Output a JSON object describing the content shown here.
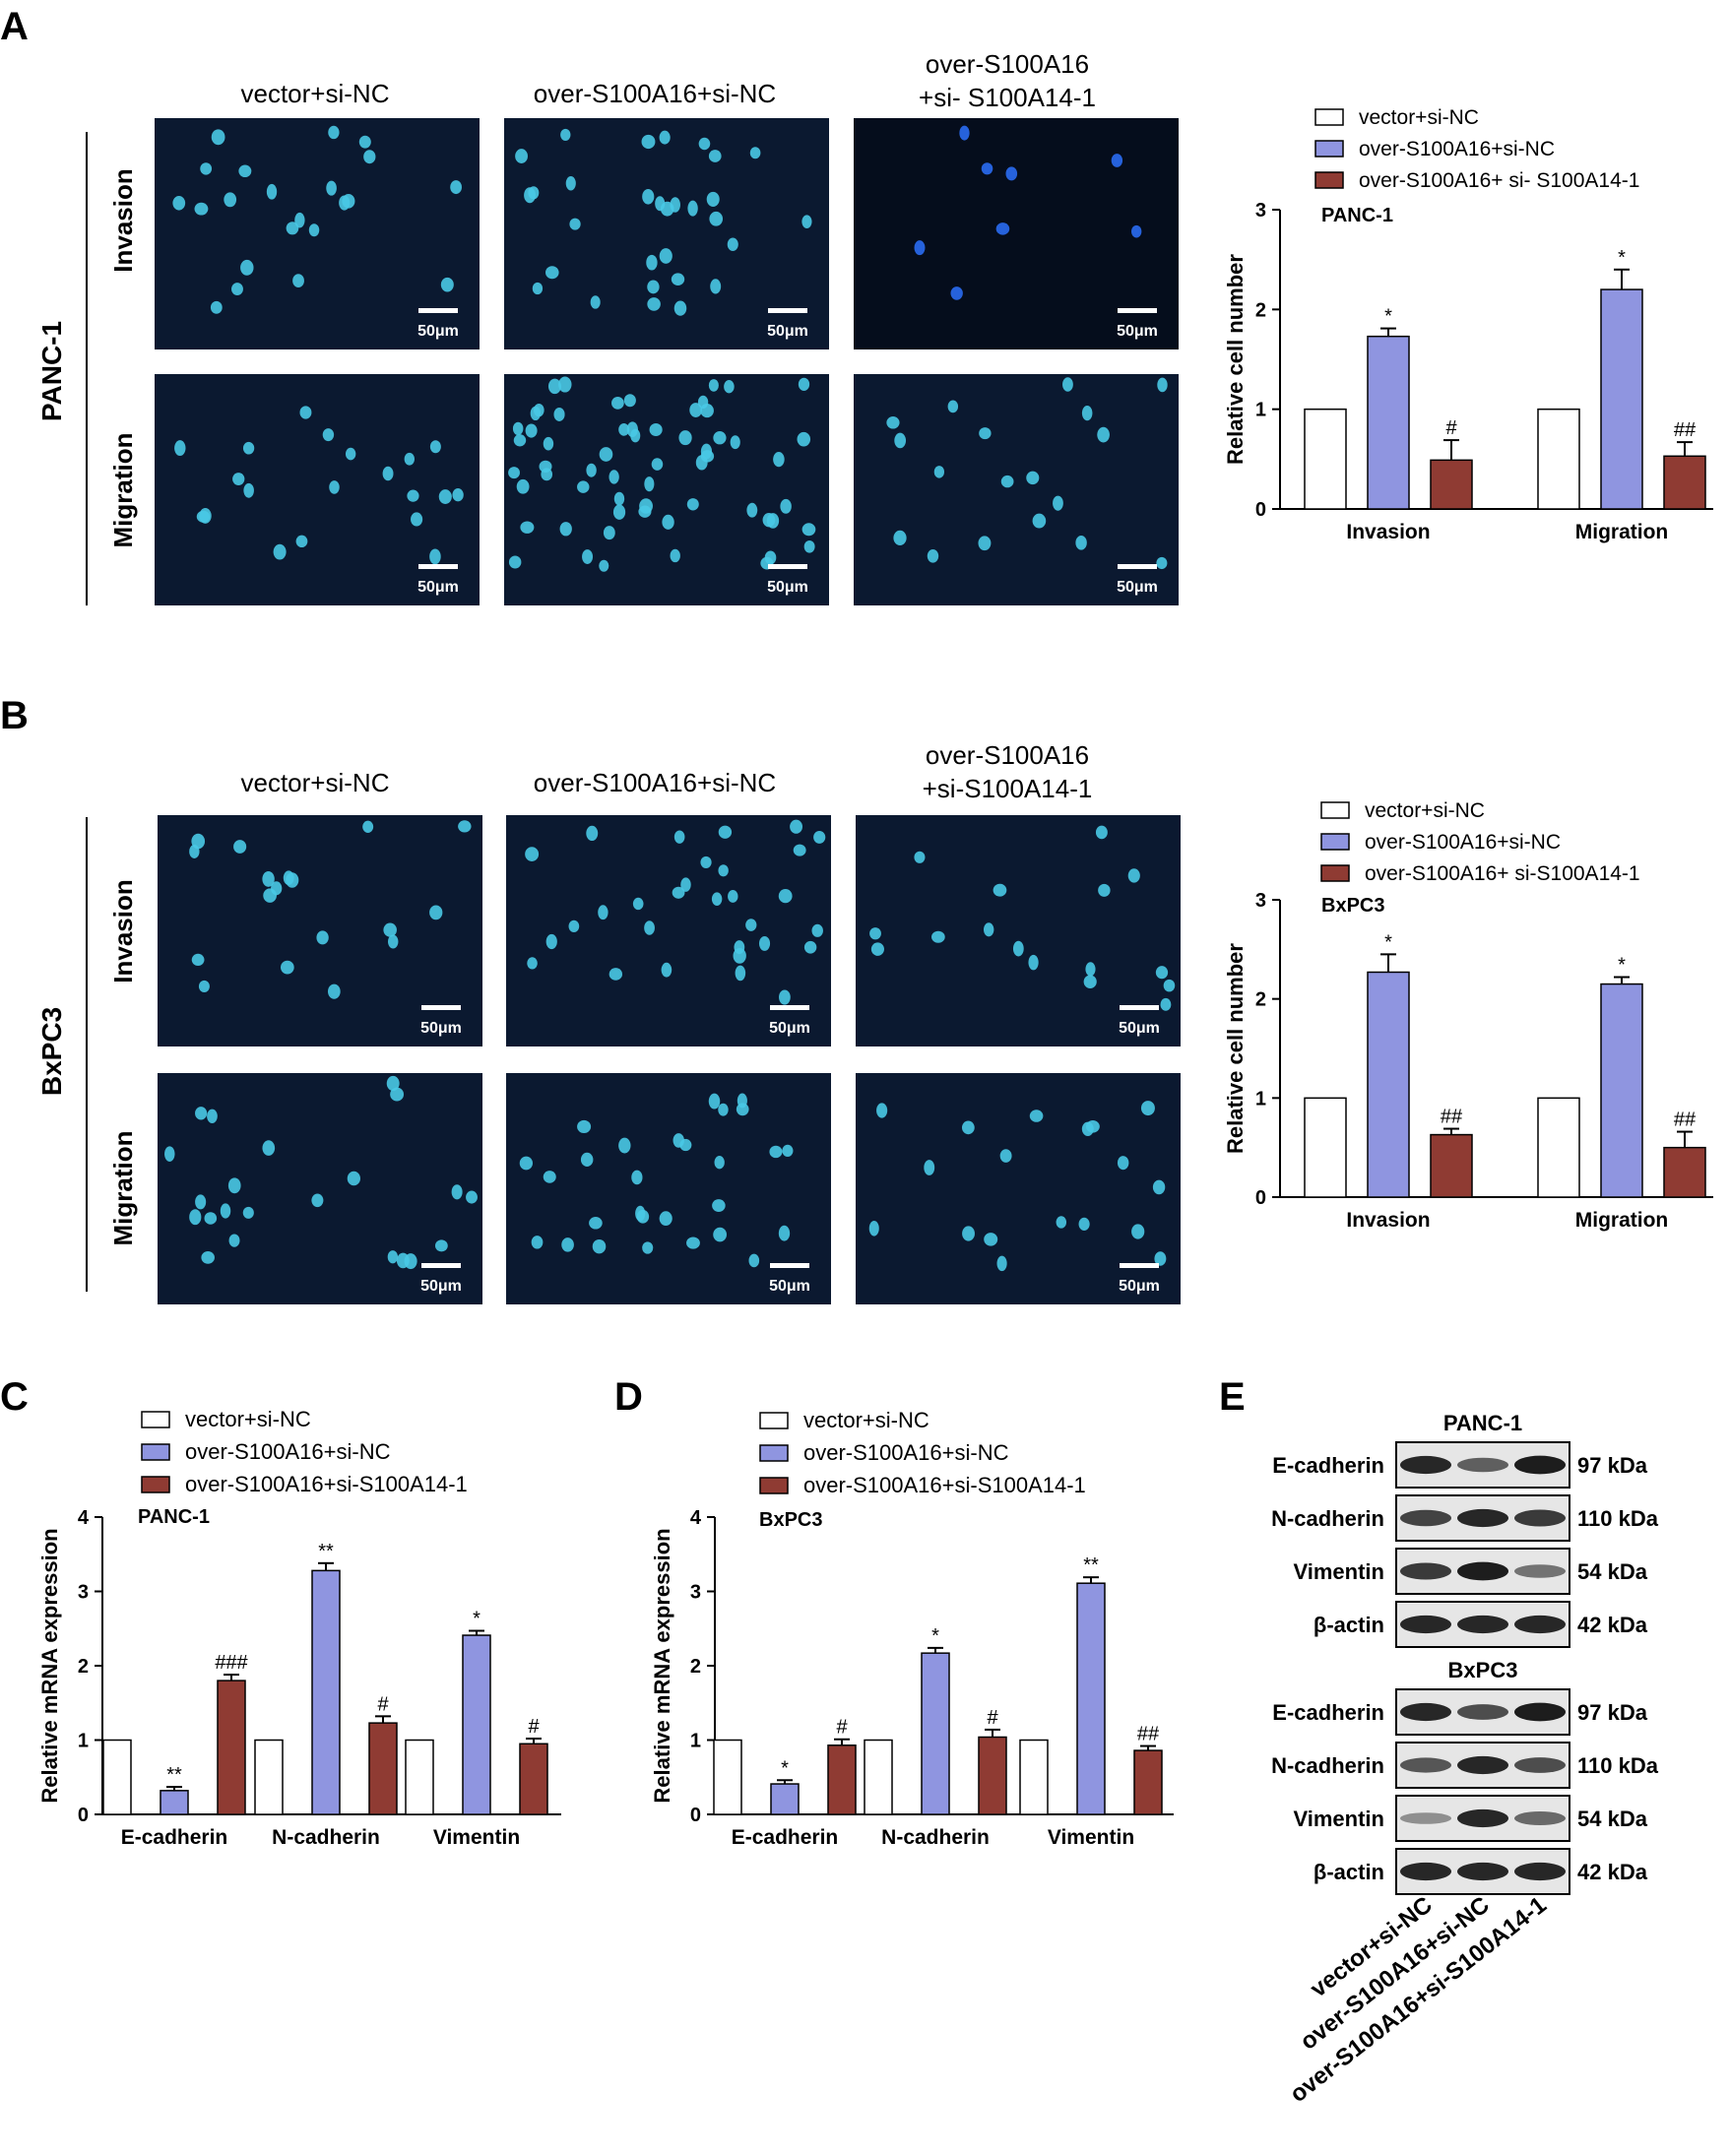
{
  "panels": {
    "A": {
      "letter": "A",
      "cell_line": "PANC-1",
      "columns": [
        "vector+si-NC",
        "over-S100A16+si-NC",
        "over-S100A16",
        "+si- S100A14-1"
      ],
      "rows": [
        "Invasion",
        "Migration"
      ],
      "scale_bar": "50μm"
    },
    "B": {
      "letter": "B",
      "cell_line": "BxPC3",
      "columns": [
        "vector+si-NC",
        "over-S100A16+si-NC",
        "over-S100A16",
        "+si-S100A14-1"
      ],
      "rows": [
        "Invasion",
        "Migration"
      ],
      "scale_bar": "50μm"
    },
    "C": {
      "letter": "C"
    },
    "D": {
      "letter": "D"
    },
    "E": {
      "letter": "E",
      "blocks": [
        {
          "title": "PANC-1",
          "rows": [
            {
              "protein": "E-cadherin",
              "size": "97 kDa",
              "bands": [
                0.85,
                0.55,
                0.9
              ]
            },
            {
              "protein": "N-cadherin",
              "size": "110 kDa",
              "bands": [
                0.7,
                0.85,
                0.75
              ]
            },
            {
              "protein": "Vimentin",
              "size": "54 kDa",
              "bands": [
                0.75,
                0.9,
                0.45
              ]
            },
            {
              "protein": "β-actin",
              "size": "42 kDa",
              "bands": [
                0.85,
                0.85,
                0.85
              ]
            }
          ]
        },
        {
          "title": "BxPC3",
          "rows": [
            {
              "protein": "E-cadherin",
              "size": "97 kDa",
              "bands": [
                0.85,
                0.65,
                0.9
              ]
            },
            {
              "protein": "N-cadherin",
              "size": "110 kDa",
              "bands": [
                0.6,
                0.85,
                0.65
              ]
            },
            {
              "protein": "Vimentin",
              "size": "54 kDa",
              "bands": [
                0.3,
                0.85,
                0.5
              ]
            },
            {
              "protein": "β-actin",
              "size": "42 kDa",
              "bands": [
                0.85,
                0.85,
                0.85
              ]
            }
          ]
        }
      ],
      "lanes": [
        "vector+si-NC",
        "over-S100A16+si-NC",
        "over-S100A16+si-S100A14-1"
      ]
    }
  },
  "colors": {
    "white_bar": "#ffffff",
    "blue_bar": "#8f95e0",
    "red_bar": "#8f3b33",
    "micro_bg": "#0b1930",
    "nucleus": "#49c9e6"
  },
  "chart_data": [
    {
      "id": "A-chart",
      "type": "bar",
      "title": "PANC-1",
      "categories": [
        "Invasion",
        "Migration"
      ],
      "ylabel": "Relative cell number",
      "ylim": [
        0,
        3
      ],
      "yticks": [
        0,
        1,
        2,
        3
      ],
      "series": [
        {
          "name": "vector+si-NC",
          "values": [
            1.0,
            1.0
          ],
          "errors": [
            0,
            0
          ],
          "marks": [
            "",
            ""
          ]
        },
        {
          "name": "over-S100A16+si-NC",
          "values": [
            1.73,
            2.2
          ],
          "errors": [
            0.08,
            0.2
          ],
          "marks": [
            "*",
            "*"
          ]
        },
        {
          "name": "over-S100A16+ si- S100A14-1",
          "values": [
            0.49,
            0.53
          ],
          "errors": [
            0.2,
            0.14
          ],
          "marks": [
            "#",
            "##"
          ]
        }
      ]
    },
    {
      "id": "B-chart",
      "type": "bar",
      "title": "BxPC3",
      "categories": [
        "Invasion",
        "Migration"
      ],
      "ylabel": "Relative cell number",
      "ylim": [
        0,
        3
      ],
      "yticks": [
        0,
        1,
        2,
        3
      ],
      "series": [
        {
          "name": "vector+si-NC",
          "values": [
            1.0,
            1.0
          ],
          "errors": [
            0,
            0
          ],
          "marks": [
            "",
            ""
          ]
        },
        {
          "name": "over-S100A16+si-NC",
          "values": [
            2.27,
            2.15
          ],
          "errors": [
            0.18,
            0.07
          ],
          "marks": [
            "*",
            "*"
          ]
        },
        {
          "name": "over-S100A16+ si-S100A14-1",
          "values": [
            0.63,
            0.5
          ],
          "errors": [
            0.06,
            0.16
          ],
          "marks": [
            "##",
            "##"
          ]
        }
      ]
    },
    {
      "id": "C-chart",
      "type": "bar",
      "title": "PANC-1",
      "categories": [
        "E-cadherin",
        "N-cadherin",
        "Vimentin"
      ],
      "ylabel": "Relative mRNA expression",
      "ylim": [
        0,
        4
      ],
      "yticks": [
        0,
        1,
        2,
        3,
        4
      ],
      "series": [
        {
          "name": "vector+si-NC",
          "values": [
            1.0,
            1.0,
            1.0
          ],
          "errors": [
            0,
            0,
            0
          ],
          "marks": [
            "",
            "",
            ""
          ]
        },
        {
          "name": "over-S100A16+si-NC",
          "values": [
            0.32,
            3.28,
            2.41
          ],
          "errors": [
            0.05,
            0.1,
            0.06
          ],
          "marks": [
            "**",
            "**",
            "*"
          ]
        },
        {
          "name": "over-S100A16+si-S100A14-1",
          "values": [
            1.8,
            1.23,
            0.95
          ],
          "errors": [
            0.08,
            0.09,
            0.07
          ],
          "marks": [
            "###",
            "#",
            "#"
          ]
        }
      ]
    },
    {
      "id": "D-chart",
      "type": "bar",
      "title": "BxPC3",
      "categories": [
        "E-cadherin",
        "N-cadherin",
        "Vimentin"
      ],
      "ylabel": "Relative mRNA expression",
      "ylim": [
        0,
        4
      ],
      "yticks": [
        0,
        1,
        2,
        3,
        4
      ],
      "series": [
        {
          "name": "vector+si-NC",
          "values": [
            1.0,
            1.0,
            1.0
          ],
          "errors": [
            0,
            0,
            0
          ],
          "marks": [
            "",
            "",
            ""
          ]
        },
        {
          "name": "over-S100A16+si-NC",
          "values": [
            0.41,
            2.17,
            3.11
          ],
          "errors": [
            0.05,
            0.07,
            0.08
          ],
          "marks": [
            "*",
            "*",
            "**"
          ]
        },
        {
          "name": "over-S100A16+si-S100A14-1",
          "values": [
            0.93,
            1.04,
            0.86
          ],
          "errors": [
            0.08,
            0.1,
            0.06
          ],
          "marks": [
            "#",
            "#",
            "##"
          ]
        }
      ]
    }
  ]
}
